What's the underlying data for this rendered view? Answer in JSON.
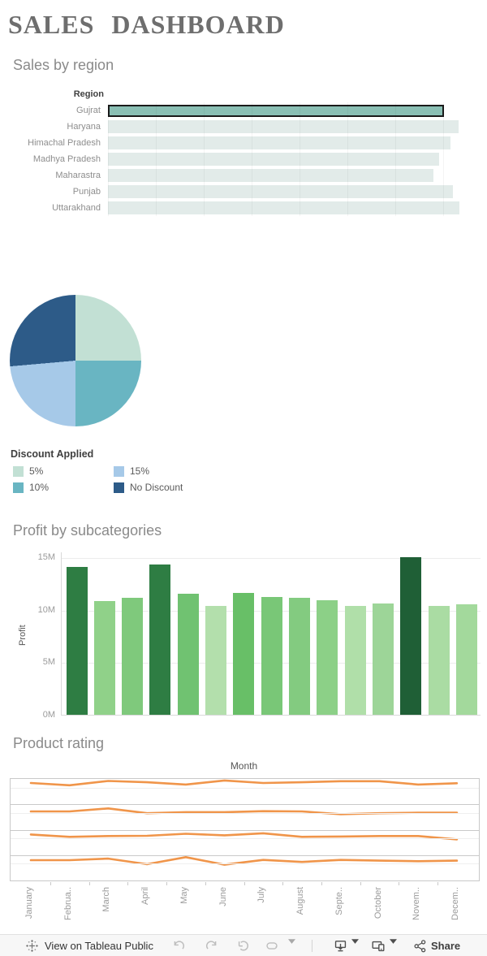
{
  "page_title": "SALES DASHBOARD",
  "chart_data": [
    {
      "type": "bar",
      "orientation": "horizontal",
      "title": "Sales by region",
      "column_header": "Region",
      "categories": [
        "Gujrat",
        "Haryana",
        "Himachal Pradesh",
        "Madhya Pradesh",
        "Maharastra",
        "Punjab",
        "Uttarakhand"
      ],
      "values_relative": [
        0.956,
        0.998,
        0.975,
        0.942,
        0.927,
        0.982,
        1.0
      ],
      "selected_category": "Gujrat",
      "axis_tick_labels_visible": false,
      "bar_color": "#e2ebe9",
      "selected_bar_color": "#8abfb4"
    },
    {
      "type": "pie",
      "legend_title": "Discount Applied",
      "slices": [
        {
          "label": "5%",
          "color": "#c2e0d4",
          "start_deg": 0,
          "end_deg": 90
        },
        {
          "label": "10%",
          "color": "#69b5c2",
          "start_deg": 90,
          "end_deg": 180
        },
        {
          "label": "15%",
          "color": "#a6c9e8",
          "start_deg": 180,
          "end_deg": 265
        },
        {
          "label": "No Discount",
          "color": "#2d5b88",
          "start_deg": 265,
          "end_deg": 360
        }
      ]
    },
    {
      "type": "bar",
      "title": "Profit by subcategories",
      "ylabel": "Profit",
      "ylim": [
        0,
        15
      ],
      "unit": "M",
      "yticks": [
        {
          "label": "0M",
          "value": 0
        },
        {
          "label": "5M",
          "value": 5
        },
        {
          "label": "10M",
          "value": 10
        },
        {
          "label": "15M",
          "value": 15
        }
      ],
      "x_axis_labels_visible": false,
      "values": [
        14.1,
        10.8,
        11.1,
        14.3,
        11.5,
        10.4,
        11.6,
        11.2,
        11.1,
        10.9,
        10.4,
        10.6,
        15.0,
        10.4,
        10.5
      ],
      "bar_colors": [
        "#2e7d43",
        "#90d189",
        "#7fc97c",
        "#2e7d43",
        "#70c271",
        "#b3dfac",
        "#68bf67",
        "#79c777",
        "#83cb80",
        "#8cd087",
        "#b0dfa9",
        "#9dd598",
        "#1f5f36",
        "#aadca3",
        "#a3d99c"
      ]
    },
    {
      "type": "line",
      "title": "Product rating",
      "xlabel": "Month",
      "x_categories_display": [
        "January",
        "Februa..",
        "March",
        "April",
        "May",
        "June",
        "July",
        "August",
        "Septe..",
        "October",
        "Novem..",
        "Decem.."
      ],
      "panels": 4,
      "line_color": "#f0954a",
      "y_axis_labels_visible": false,
      "series": [
        {
          "name": "panel-1",
          "y_relative": [
            0.16,
            0.25,
            0.08,
            0.13,
            0.22,
            0.06,
            0.16,
            0.13,
            0.09,
            0.09,
            0.22,
            0.17
          ]
        },
        {
          "name": "panel-2",
          "y_relative": [
            0.28,
            0.28,
            0.16,
            0.35,
            0.31,
            0.31,
            0.27,
            0.28,
            0.39,
            0.35,
            0.33,
            0.33
          ]
        },
        {
          "name": "panel-3",
          "y_relative": [
            0.19,
            0.28,
            0.25,
            0.24,
            0.16,
            0.22,
            0.14,
            0.28,
            0.27,
            0.25,
            0.25,
            0.38
          ]
        },
        {
          "name": "panel-4",
          "y_relative": [
            0.2,
            0.2,
            0.14,
            0.36,
            0.08,
            0.38,
            0.19,
            0.27,
            0.19,
            0.22,
            0.24,
            0.22
          ]
        }
      ]
    }
  ],
  "toolbar": {
    "view_label": "View on Tableau Public",
    "share_label": "Share",
    "icons": [
      "tableau-logo-icon",
      "undo-icon",
      "redo-icon",
      "replay-icon",
      "refresh-icon",
      "caret-down-icon",
      "download-icon",
      "device-preview-icon",
      "share-icon"
    ]
  }
}
